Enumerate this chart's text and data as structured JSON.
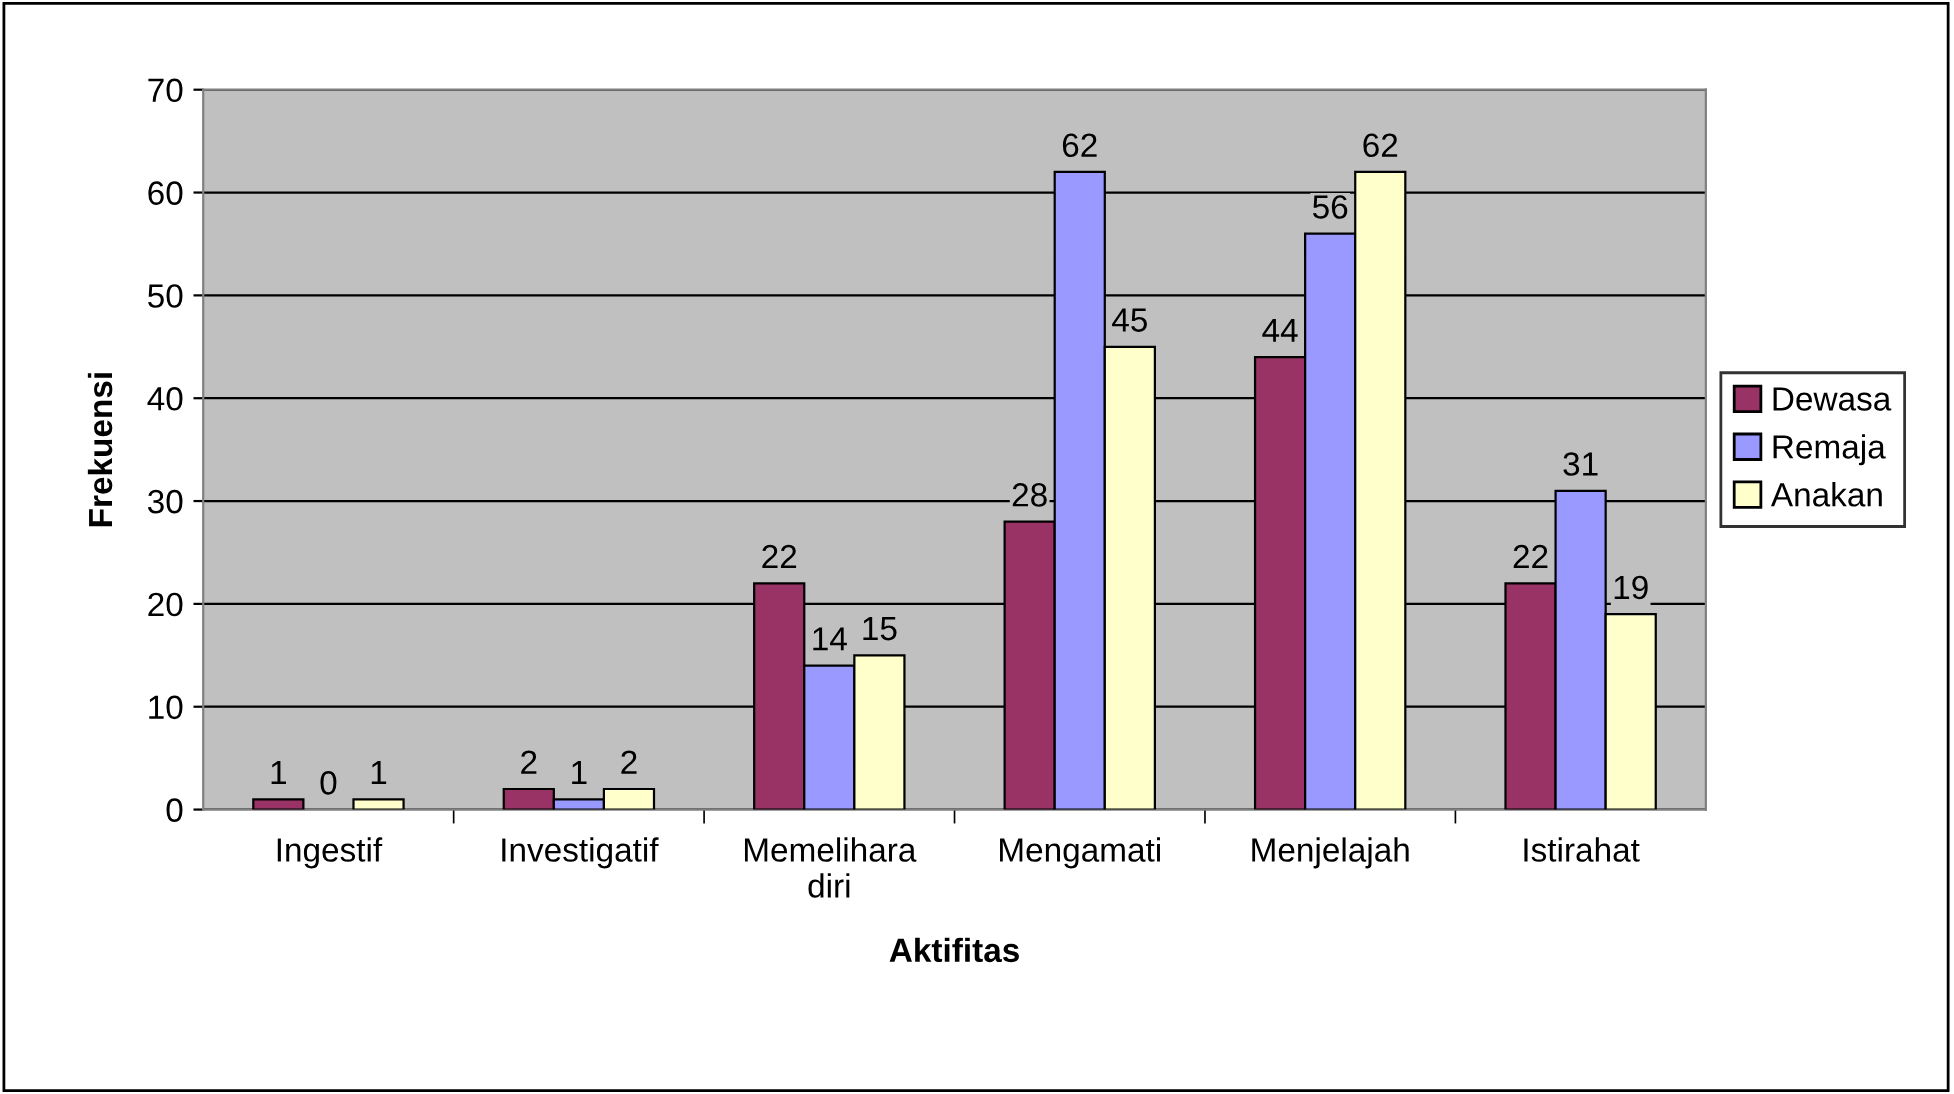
{
  "chart_data": {
    "type": "bar",
    "xlabel": "Aktifitas",
    "ylabel": "Frekuensi",
    "categories": [
      "Ingestif",
      "Investigatif",
      "Memelihara\ndiri",
      "Mengamati",
      "Menjelajah",
      "Istirahat"
    ],
    "series": [
      {
        "name": "Dewasa",
        "color": "#993366",
        "values": [
          1,
          2,
          22,
          28,
          44,
          22
        ]
      },
      {
        "name": "Remaja",
        "color": "#9999ff",
        "values": [
          0,
          1,
          14,
          62,
          56,
          31
        ]
      },
      {
        "name": "Anakan",
        "color": "#ffffcc",
        "values": [
          1,
          2,
          15,
          45,
          62,
          19
        ]
      }
    ],
    "ylim": [
      0,
      70
    ],
    "yticks": [
      0,
      10,
      20,
      30,
      40,
      50,
      60,
      70
    ],
    "grid": "y",
    "legend": "right",
    "data_labels": true
  }
}
